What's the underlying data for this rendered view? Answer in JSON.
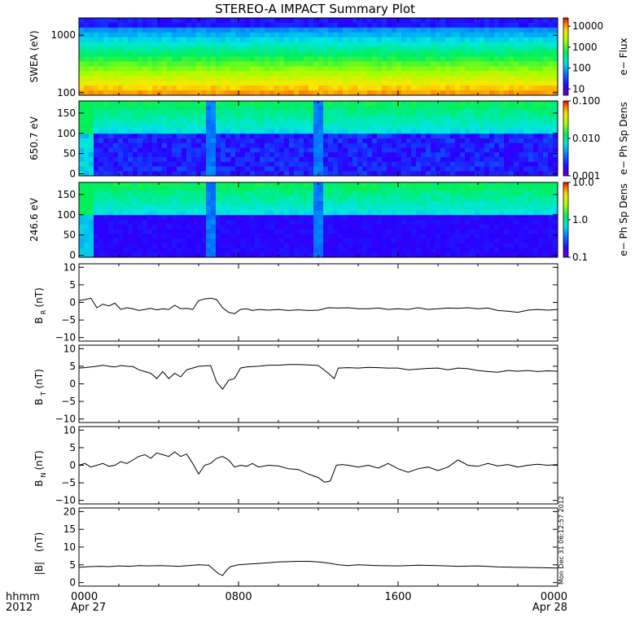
{
  "chart_data": {
    "title": "STEREO-A IMPACT Summary Plot",
    "type": "line",
    "x_axis": {
      "label_line1": "hhmm",
      "label_line2": "2012",
      "range_hours": [
        0,
        24
      ],
      "ticks": [
        {
          "hour": 0,
          "label": "0000",
          "date": "Apr 27"
        },
        {
          "hour": 8,
          "label": "0800",
          "date": ""
        },
        {
          "hour": 16,
          "label": "1600",
          "date": ""
        },
        {
          "hour": 24,
          "label": "0000",
          "date": "Apr 28"
        }
      ]
    },
    "timestamp_text": "Mon Dec 31 06:12:57 2012",
    "spectrograms": [
      {
        "id": "swea",
        "ylabel": "SWEA (eV)",
        "yscale": "log",
        "ylim": [
          90,
          2000
        ],
        "yticks": [
          {
            "v": 100,
            "label": "100"
          },
          {
            "v": 1000,
            "label": "1000"
          }
        ],
        "colorbar_label": "e− Flux",
        "colorbar_scale": "log",
        "colorbar_range": [
          5,
          25000
        ],
        "colorbar_ticks": [
          {
            "v": 10,
            "label": "10"
          },
          {
            "v": 100,
            "label": "100"
          },
          {
            "v": 1000,
            "label": "1000"
          },
          {
            "v": 10000,
            "label": "10000"
          }
        ]
      },
      {
        "id": "pad650",
        "ylabel": "650.7 eV",
        "yscale": "linear",
        "ylim": [
          -5,
          180
        ],
        "yticks": [
          {
            "v": 0,
            "label": "0"
          },
          {
            "v": 50,
            "label": "50"
          },
          {
            "v": 100,
            "label": "100"
          },
          {
            "v": 150,
            "label": "150"
          }
        ],
        "colorbar_label": "e− Ph Sp Dens",
        "colorbar_scale": "log",
        "colorbar_range": [
          0.001,
          0.1
        ],
        "colorbar_ticks": [
          {
            "v": 0.001,
            "label": "0.001"
          },
          {
            "v": 0.01,
            "label": "0.010"
          },
          {
            "v": 0.1,
            "label": "0.100"
          }
        ]
      },
      {
        "id": "pad246",
        "ylabel": "246.6 eV",
        "yscale": "linear",
        "ylim": [
          -5,
          180
        ],
        "yticks": [
          {
            "v": 0,
            "label": "0"
          },
          {
            "v": 50,
            "label": "50"
          },
          {
            "v": 100,
            "label": "100"
          },
          {
            "v": 150,
            "label": "150"
          }
        ],
        "colorbar_label": "e− Ph Sp Dens",
        "colorbar_scale": "log",
        "colorbar_range": [
          0.1,
          10
        ],
        "colorbar_ticks": [
          {
            "v": 0.1,
            "label": "0.1"
          },
          {
            "v": 1,
            "label": "1.0"
          },
          {
            "v": 10,
            "label": "10.0"
          }
        ]
      }
    ],
    "line_panels": [
      {
        "id": "br",
        "ylabel_main": "B",
        "ylabel_sub": "R",
        "ylabel_unit": "(nT)",
        "ylim": [
          -11,
          11
        ],
        "yticks": [
          {
            "v": -10,
            "label": "−10"
          },
          {
            "v": -5,
            "label": "−5"
          },
          {
            "v": 0,
            "label": "0"
          },
          {
            "v": 5,
            "label": "5"
          },
          {
            "v": 10,
            "label": "10"
          }
        ],
        "x": [
          0,
          0.3,
          0.6,
          0.9,
          1.2,
          1.5,
          1.8,
          2.1,
          2.4,
          2.7,
          3.0,
          3.3,
          3.6,
          3.9,
          4.2,
          4.5,
          4.8,
          5.1,
          5.4,
          5.7,
          6.0,
          6.3,
          6.6,
          6.9,
          7.2,
          7.5,
          7.8,
          8.1,
          8.4,
          8.7,
          9.0,
          9.5,
          10.0,
          10.5,
          11.0,
          11.5,
          12.0,
          12.5,
          13.0,
          13.5,
          14.0,
          14.5,
          15.0,
          15.5,
          16.0,
          16.5,
          17.0,
          17.5,
          18.0,
          18.5,
          19.0,
          19.5,
          20.0,
          20.5,
          21.0,
          21.5,
          22.0,
          22.5,
          23.0,
          23.5,
          24.0
        ],
        "y": [
          0.5,
          0.8,
          1.2,
          -1.5,
          -0.5,
          -1.0,
          -0.2,
          -2.0,
          -1.5,
          -1.8,
          -2.3,
          -2.0,
          -1.7,
          -2.1,
          -1.8,
          -2.0,
          -0.8,
          -1.8,
          -1.7,
          -2.0,
          0.5,
          1.0,
          1.2,
          0.8,
          -1.5,
          -2.8,
          -3.2,
          -2.0,
          -1.8,
          -2.3,
          -2.0,
          -2.2,
          -2.0,
          -2.3,
          -2.1,
          -2.3,
          -2.2,
          -1.5,
          -1.6,
          -1.5,
          -1.8,
          -1.8,
          -1.6,
          -2.0,
          -1.8,
          -2.0,
          -1.5,
          -2.0,
          -1.8,
          -1.6,
          -1.7,
          -1.5,
          -1.8,
          -1.6,
          -2.3,
          -2.5,
          -2.8,
          -2.2,
          -2.0,
          -2.2,
          -2.0
        ]
      },
      {
        "id": "bt",
        "ylabel_main": "B",
        "ylabel_sub": "T",
        "ylabel_unit": "(nT)",
        "ylim": [
          -11,
          11
        ],
        "yticks": [
          {
            "v": -10,
            "label": "−10"
          },
          {
            "v": -5,
            "label": "−5"
          },
          {
            "v": 0,
            "label": "0"
          },
          {
            "v": 5,
            "label": "5"
          },
          {
            "v": 10,
            "label": "10"
          }
        ],
        "x": [
          0,
          0.3,
          0.6,
          0.9,
          1.2,
          1.5,
          1.8,
          2.1,
          2.4,
          2.7,
          3.0,
          3.3,
          3.6,
          3.9,
          4.2,
          4.5,
          4.8,
          5.1,
          5.4,
          5.7,
          6.0,
          6.3,
          6.6,
          6.9,
          7.2,
          7.5,
          7.8,
          8.1,
          8.4,
          8.7,
          9.0,
          9.5,
          10.0,
          10.5,
          11.0,
          11.5,
          12.0,
          12.5,
          12.8,
          13.0,
          13.5,
          14.0,
          14.5,
          15.0,
          15.5,
          16.0,
          16.5,
          17.0,
          17.5,
          18.0,
          18.5,
          19.0,
          19.5,
          20.0,
          20.5,
          21.0,
          21.5,
          22.0,
          22.5,
          23.0,
          23.5,
          24.0
        ],
        "y": [
          4.5,
          4.6,
          4.8,
          5.0,
          5.3,
          5.0,
          4.8,
          5.2,
          5.0,
          4.9,
          4.0,
          3.5,
          3.0,
          1.5,
          3.5,
          1.5,
          3.0,
          2.0,
          4.0,
          4.5,
          5.0,
          5.1,
          5.2,
          0.5,
          -1.5,
          1.0,
          1.5,
          4.5,
          4.8,
          4.9,
          5.0,
          5.3,
          5.3,
          5.5,
          5.5,
          5.4,
          5.2,
          3.0,
          1.5,
          4.5,
          4.6,
          4.5,
          4.7,
          4.6,
          4.5,
          4.5,
          4.0,
          4.2,
          4.4,
          4.5,
          4.0,
          4.5,
          4.3,
          3.8,
          3.5,
          3.3,
          3.8,
          3.6,
          3.8,
          3.5,
          3.7,
          3.6
        ]
      },
      {
        "id": "bn",
        "ylabel_main": "B",
        "ylabel_sub": "N",
        "ylabel_unit": "(nT)",
        "ylim": [
          -11,
          11
        ],
        "yticks": [
          {
            "v": -10,
            "label": "−10"
          },
          {
            "v": -5,
            "label": "−5"
          },
          {
            "v": 0,
            "label": "0"
          },
          {
            "v": 5,
            "label": "5"
          },
          {
            "v": 10,
            "label": "10"
          }
        ],
        "x": [
          0,
          0.3,
          0.6,
          0.9,
          1.2,
          1.5,
          1.8,
          2.1,
          2.4,
          2.7,
          3.0,
          3.3,
          3.6,
          3.9,
          4.2,
          4.5,
          4.8,
          5.1,
          5.4,
          5.7,
          6.0,
          6.3,
          6.6,
          6.9,
          7.2,
          7.5,
          7.8,
          8.1,
          8.4,
          8.7,
          9.0,
          9.5,
          10.0,
          10.5,
          11.0,
          11.5,
          12.0,
          12.3,
          12.6,
          12.9,
          13.2,
          13.5,
          14.0,
          14.5,
          15.0,
          15.5,
          16.0,
          16.5,
          17.0,
          17.5,
          18.0,
          18.5,
          19.0,
          19.5,
          20.0,
          20.5,
          21.0,
          21.5,
          22.0,
          22.5,
          23.0,
          23.5,
          24.0
        ],
        "y": [
          0.0,
          0.5,
          -0.5,
          0.0,
          0.5,
          -0.3,
          0.0,
          1.0,
          0.5,
          1.5,
          2.5,
          3.0,
          2.0,
          3.5,
          3.0,
          2.5,
          3.8,
          2.5,
          3.2,
          0.5,
          -2.5,
          0.0,
          0.5,
          2.0,
          2.5,
          1.5,
          -0.5,
          0.0,
          -0.3,
          0.5,
          -0.5,
          0.0,
          -0.2,
          -1.0,
          -1.2,
          -2.5,
          -3.5,
          -4.8,
          -4.5,
          0.0,
          0.2,
          0.0,
          -0.5,
          0.0,
          -0.8,
          0.5,
          -1.0,
          -2.0,
          -1.0,
          -0.5,
          -1.5,
          -0.5,
          1.5,
          0.0,
          -0.3,
          0.5,
          -0.2,
          0.2,
          -0.5,
          0.0,
          0.3,
          0.0,
          0.2
        ]
      },
      {
        "id": "bmag",
        "ylabel_main": "|B|",
        "ylabel_sub": "",
        "ylabel_unit": "(nT)",
        "ylim": [
          -1,
          21
        ],
        "yticks": [
          {
            "v": 0,
            "label": "0"
          },
          {
            "v": 5,
            "label": "5"
          },
          {
            "v": 10,
            "label": "10"
          },
          {
            "v": 15,
            "label": "15"
          },
          {
            "v": 20,
            "label": "20"
          }
        ],
        "x": [
          0,
          0.5,
          1.0,
          1.5,
          2.0,
          2.5,
          3.0,
          3.5,
          4.0,
          4.5,
          5.0,
          5.5,
          6.0,
          6.5,
          7.0,
          7.2,
          7.4,
          7.6,
          8.0,
          8.5,
          9.0,
          9.5,
          10.0,
          10.5,
          11.0,
          11.5,
          12.0,
          12.5,
          13.0,
          13.5,
          14.0,
          15.0,
          16.0,
          17.0,
          18.0,
          19.0,
          20.0,
          21.0,
          22.0,
          23.0,
          24.0
        ],
        "y": [
          4.3,
          4.5,
          4.6,
          4.5,
          4.7,
          4.6,
          4.8,
          4.7,
          4.8,
          4.7,
          4.6,
          4.8,
          5.0,
          4.9,
          2.5,
          2.0,
          3.5,
          4.5,
          5.0,
          5.2,
          5.4,
          5.6,
          5.8,
          5.9,
          6.0,
          6.0,
          5.8,
          5.5,
          5.0,
          4.8,
          5.0,
          4.8,
          4.7,
          4.9,
          4.8,
          4.6,
          4.7,
          4.4,
          4.3,
          4.2,
          4.1
        ]
      }
    ]
  }
}
